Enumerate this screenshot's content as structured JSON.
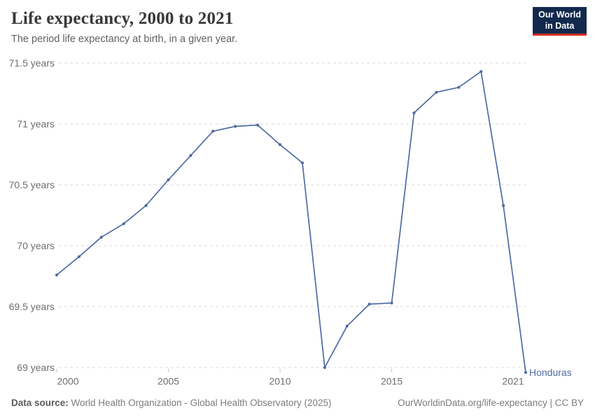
{
  "header": {
    "title": "Life expectancy, 2000 to 2021",
    "subtitle": "The period life expectancy at birth, in a given year.",
    "logo": {
      "line1": "Our World",
      "line2": "in Data"
    }
  },
  "chart_data": {
    "type": "line",
    "title": "Life expectancy, 2000 to 2021",
    "xlabel": "",
    "ylabel": "",
    "x": [
      2000,
      2001,
      2002,
      2003,
      2004,
      2005,
      2006,
      2007,
      2008,
      2009,
      2010,
      2011,
      2012,
      2013,
      2014,
      2015,
      2016,
      2017,
      2018,
      2019,
      2020,
      2021
    ],
    "series": [
      {
        "name": "Honduras",
        "color": "#4e6ba3",
        "values": [
          69.76,
          69.91,
          70.07,
          70.18,
          70.33,
          70.54,
          70.74,
          70.94,
          70.98,
          70.99,
          70.83,
          70.68,
          69.0,
          69.34,
          69.52,
          69.53,
          71.09,
          71.26,
          71.3,
          71.43,
          70.33,
          68.96
        ]
      }
    ],
    "x_ticks": {
      "values": [
        2000,
        2005,
        2010,
        2015,
        2021
      ],
      "labels": [
        "2000",
        "2005",
        "2010",
        "2015",
        "2021"
      ]
    },
    "y_ticks": {
      "values": [
        69,
        69.5,
        70,
        70.5,
        71,
        71.5
      ],
      "labels": [
        "69 years",
        "69.5 years",
        "70 years",
        "70.5 years",
        "71 years",
        "71.5 years"
      ]
    },
    "xlim": [
      2000,
      2021
    ],
    "ylim": [
      68.9,
      71.5
    ],
    "grid": "horizontal-dashed",
    "legend": "entity-label-right-of-line",
    "entity_label": "Honduras"
  },
  "colors": {
    "line": "#4e6ba3",
    "grid": "#d9d9d9",
    "tick_text": "#6e6e6e",
    "title_text": "#383838",
    "subtitle_text": "#616161",
    "footer_text": "#7c7c7c",
    "logo_bg": "#12294e",
    "logo_accent": "#d6301d"
  },
  "footer": {
    "datasource_label": "Data source:",
    "datasource_value": "World Health Organization - Global Health Observatory (2025)",
    "url": "OurWorldinData.org/life-expectancy",
    "separator": " | ",
    "license": "CC BY"
  }
}
